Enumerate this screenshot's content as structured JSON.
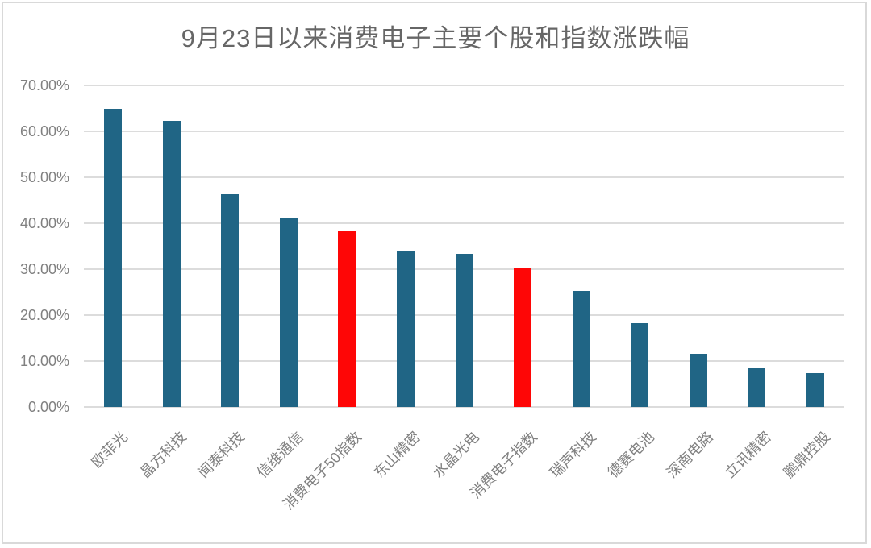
{
  "title": "9月23日以来消费电子主要个股和指数涨跌幅",
  "chart_data": {
    "type": "bar",
    "title": "9月23日以来消费电子主要个股和指数涨跌幅",
    "categories": [
      "欧菲光",
      "晶方科技",
      "闻泰科技",
      "信维通信",
      "消费电子50指数",
      "东山精密",
      "水晶光电",
      "消费电子指数",
      "瑞声科技",
      "德赛电池",
      "深南电路",
      "立讯精密",
      "鹏鼎控股"
    ],
    "values": [
      65.0,
      62.3,
      46.4,
      41.2,
      38.2,
      34.1,
      33.3,
      30.1,
      25.3,
      18.3,
      11.5,
      8.5,
      7.3
    ],
    "unit": "%",
    "highlight_indexes": [
      4,
      7
    ],
    "highlighted_categories": [
      "消费电子50指数",
      "消费电子指数"
    ],
    "y_tick_labels": [
      "0.00%",
      "10.00%",
      "20.00%",
      "30.00%",
      "40.00%",
      "50.00%",
      "60.00%",
      "70.00%"
    ],
    "ylim": [
      0,
      70
    ],
    "xlabel": "",
    "ylabel": "",
    "grid": true,
    "legend": false,
    "colors": {
      "default": "#206585",
      "highlight": "#fe0606",
      "gridline": "#dcdcdc",
      "axis_text": "#808080",
      "title_text": "#666666",
      "frame_border": "#d9d9d9"
    }
  }
}
